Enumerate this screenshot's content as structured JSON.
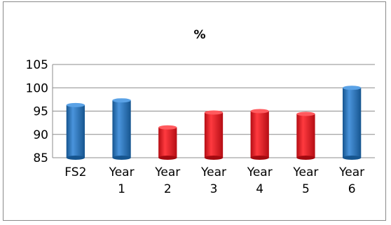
{
  "chart_data": {
    "type": "bar",
    "title": "%",
    "xlabel": "",
    "ylabel": "",
    "categories": [
      [
        "FS2"
      ],
      [
        "Year",
        "1"
      ],
      [
        "Year",
        "2"
      ],
      [
        "Year",
        "3"
      ],
      [
        "Year",
        "4"
      ],
      [
        "Year",
        "5"
      ],
      [
        "Year",
        "6"
      ]
    ],
    "values": [
      96.3,
      97.3,
      91.5,
      94.7,
      95.0,
      94.4,
      100.0
    ],
    "bar_colors": [
      "#1f6fc0",
      "#1f6fc0",
      "#e8141e",
      "#e8141e",
      "#e8141e",
      "#e8141e",
      "#1f6fc0"
    ],
    "ylim": [
      85,
      105
    ],
    "yticks": [
      85,
      90,
      95,
      100,
      105
    ],
    "grid": true,
    "legend": "none"
  }
}
